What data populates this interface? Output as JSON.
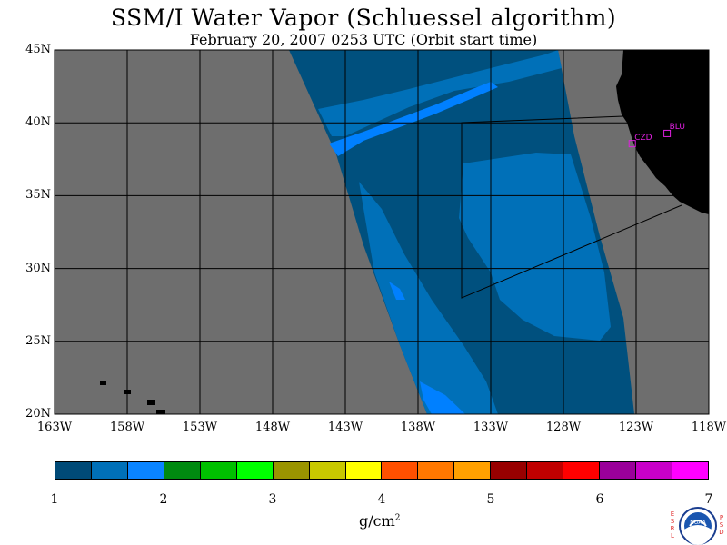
{
  "title": "SSM/I Water Vapor (Schluessel algorithm)",
  "subtitle": "February 20, 2007  0253 UTC  (Orbit start time)",
  "map": {
    "lat_labels": [
      "45N",
      "40N",
      "35N",
      "30N",
      "25N",
      "20N"
    ],
    "lon_labels": [
      "163W",
      "158W",
      "153W",
      "148W",
      "143W",
      "138W",
      "133W",
      "128W",
      "123W",
      "118W"
    ],
    "stations": [
      {
        "name": "CZD",
        "lon": -123.3,
        "lat": 38.6
      },
      {
        "name": "BLU",
        "lon": -120.9,
        "lat": 39.3
      }
    ],
    "colors": {
      "no_data": "#6e6e6e",
      "land": "#000000",
      "dark_band": "#00507e",
      "mid_band": "#0070b8",
      "light_band": "#0080ff"
    }
  },
  "colorbar": {
    "ticks": [
      "1",
      "2",
      "3",
      "4",
      "5",
      "6",
      "7"
    ],
    "unit_base": "g/cm",
    "unit_exp": "2",
    "colors": [
      "#004a77",
      "#0070b8",
      "#0a84ff",
      "#008a10",
      "#00c000",
      "#00ff00",
      "#9a9400",
      "#c8c800",
      "#ffff00",
      "#ff5000",
      "#ff7800",
      "#ffa000",
      "#980000",
      "#c00000",
      "#ff0000",
      "#9a009a",
      "#c800c8",
      "#ff00ff"
    ]
  },
  "logo": {
    "text": "NOAA",
    "left_letters": "ESRL",
    "right_letters": "PSD"
  }
}
